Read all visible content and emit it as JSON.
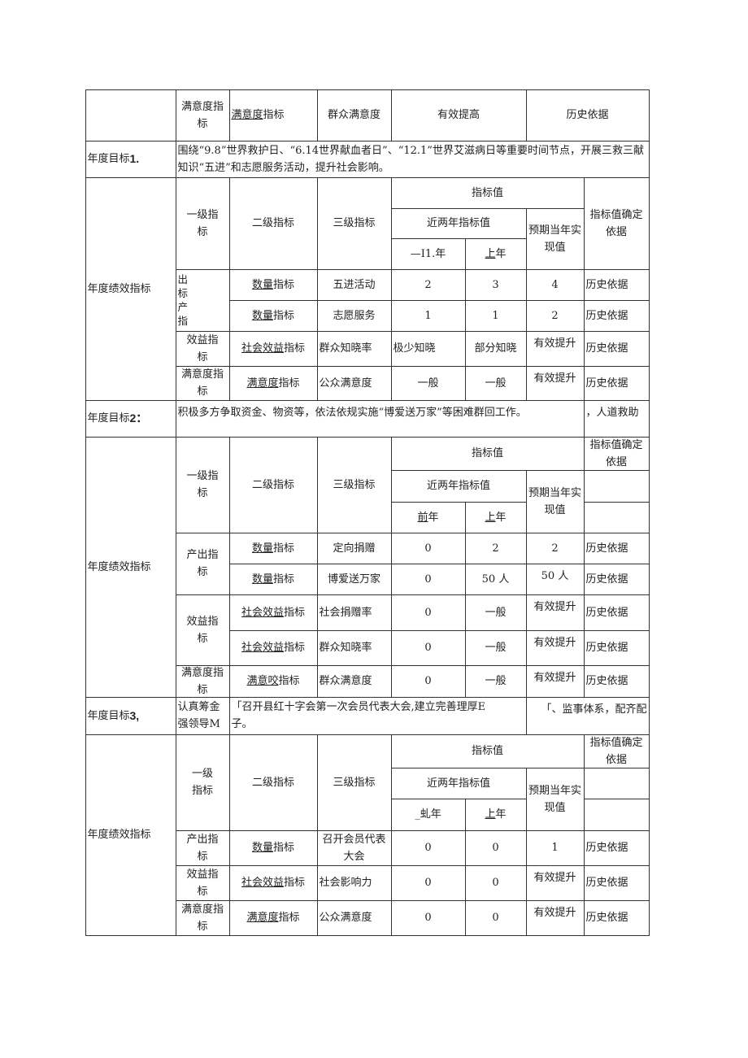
{
  "top_row": {
    "c1": "满意度指\n标",
    "c2": {
      "u": "满意度",
      "t": "指标"
    },
    "c3": "群众满意度",
    "c4": "有效提高",
    "c5": "历史依据"
  },
  "headers": {
    "level1": "一级指\n标",
    "level1_b3": "一级\n指标",
    "level2": "二级指标",
    "level3": "三级指标",
    "indicator_value": "指标值",
    "recent_two_years": "近两年指标值",
    "expected": "预期当年实\n现值",
    "basis": "指标值确定\n依据",
    "perf_label": "年度绩效指标"
  },
  "goal1": {
    "label": "年度目标",
    "num": "1.",
    "text": "    围绕“9.8”世界救护日、“6.14世界献血者日”、“12.1”世界艾滋病日等重要时间节点，开展三救三献知识“五进”和志愿服务活动，提升社会影响。",
    "year1": "—I1.年",
    "year2": {
      "u": "上",
      "t": "年"
    },
    "rows": [
      {
        "l1": "出\n标\n产\n指",
        "l2": {
          "u": "数量",
          "t": "指标"
        },
        "l3": "五进活动",
        "v1": "2",
        "v2": "3",
        "v3": "4",
        "basis": "历史依据"
      },
      {
        "l2": {
          "u": "数量",
          "t": "指标"
        },
        "l3": "志愿服务",
        "v1": "1",
        "v2": "1",
        "v3": "2",
        "basis": "历史依据"
      },
      {
        "l1": "效益指\n标",
        "l2": {
          "u": "社会效益",
          "t": "指标"
        },
        "l3": "群众知晓率",
        "v1": "极少知晓",
        "v2": "部分知晓",
        "v3": "有效提升",
        "basis": "历史依据"
      },
      {
        "l1": "满意度指\n标",
        "l2": {
          "u": "满意度",
          "t": "指标"
        },
        "l3": "公众满意度",
        "v1": "一般",
        "v2": "一般",
        "v3": "有效提升",
        "basis": "历史依据"
      }
    ]
  },
  "goal2": {
    "label": "年度目标",
    "num": "2：",
    "text": "积极多方争取资金、物资等，依法依规实施“博爱送万家”等困难群回工作。",
    "text_right": "，人道救助",
    "year1": {
      "u": "前",
      "t": "年"
    },
    "year2": {
      "u": "上",
      "t": "年"
    },
    "rows": [
      {
        "l1": "产出指\n标",
        "l2": {
          "u": "数量",
          "t": "指标"
        },
        "l3": "定向捐赠",
        "v1": "0",
        "v2": "2",
        "v3": "2",
        "basis": "历史依据"
      },
      {
        "l2": {
          "u": "数量",
          "t": "指标"
        },
        "l3": "博爱送万家",
        "v1": "0",
        "v2": "50 人",
        "v3": "50 人",
        "basis": "历史依据"
      },
      {
        "l1": "效益指\n标",
        "l2": {
          "u": "社会效益",
          "t": "指标"
        },
        "l3": "社会捐赠率",
        "v1": "0",
        "v2": "一般",
        "v3": "有效提升",
        "basis": "历史依据"
      },
      {
        "l2": {
          "u": "社会效益",
          "t": "指标"
        },
        "l3": "群众知晓率",
        "v1": "0",
        "v2": "一般",
        "v3": "有效提升",
        "basis": "历史依据"
      },
      {
        "l1": "满意度指\n标",
        "l2": {
          "u": "满意咬",
          "t": "指标"
        },
        "l3": "群众满意度",
        "v1": "0",
        "v2": "一般",
        "v3": "有效提升",
        "basis": "历史依据"
      }
    ]
  },
  "goal3": {
    "label": "年度目标",
    "num": "3,",
    "text_left": "认真筹金\n强领导M",
    "text": "「召开县红十字会第一次会员代表大会,建立完善理厚E\n子。",
    "text_right": "「、监事体系，配齐配",
    "year1": "_虬年",
    "year2": {
      "u": "上",
      "t": "年"
    },
    "rows": [
      {
        "l1": "产出指\n标",
        "l2": {
          "u": "数量",
          "t": "指标"
        },
        "l3": "召开会员代表\n大会",
        "v1": "0",
        "v2": "0",
        "v3": "1",
        "basis": "历史依据"
      },
      {
        "l1": "效益指\n标",
        "l2": {
          "u": "社会效益",
          "t": "指标"
        },
        "l3": "社会影响力",
        "v1": "0",
        "v2": "0",
        "v3": "有效提升",
        "basis": "历史依据"
      },
      {
        "l1": "满意度指\n标",
        "l2": {
          "u": "满意度",
          "t": "指标"
        },
        "l3": "公众满意度",
        "v1": "0",
        "v2": "0",
        "v3": "有效提升",
        "basis": "历史依据"
      }
    ]
  }
}
